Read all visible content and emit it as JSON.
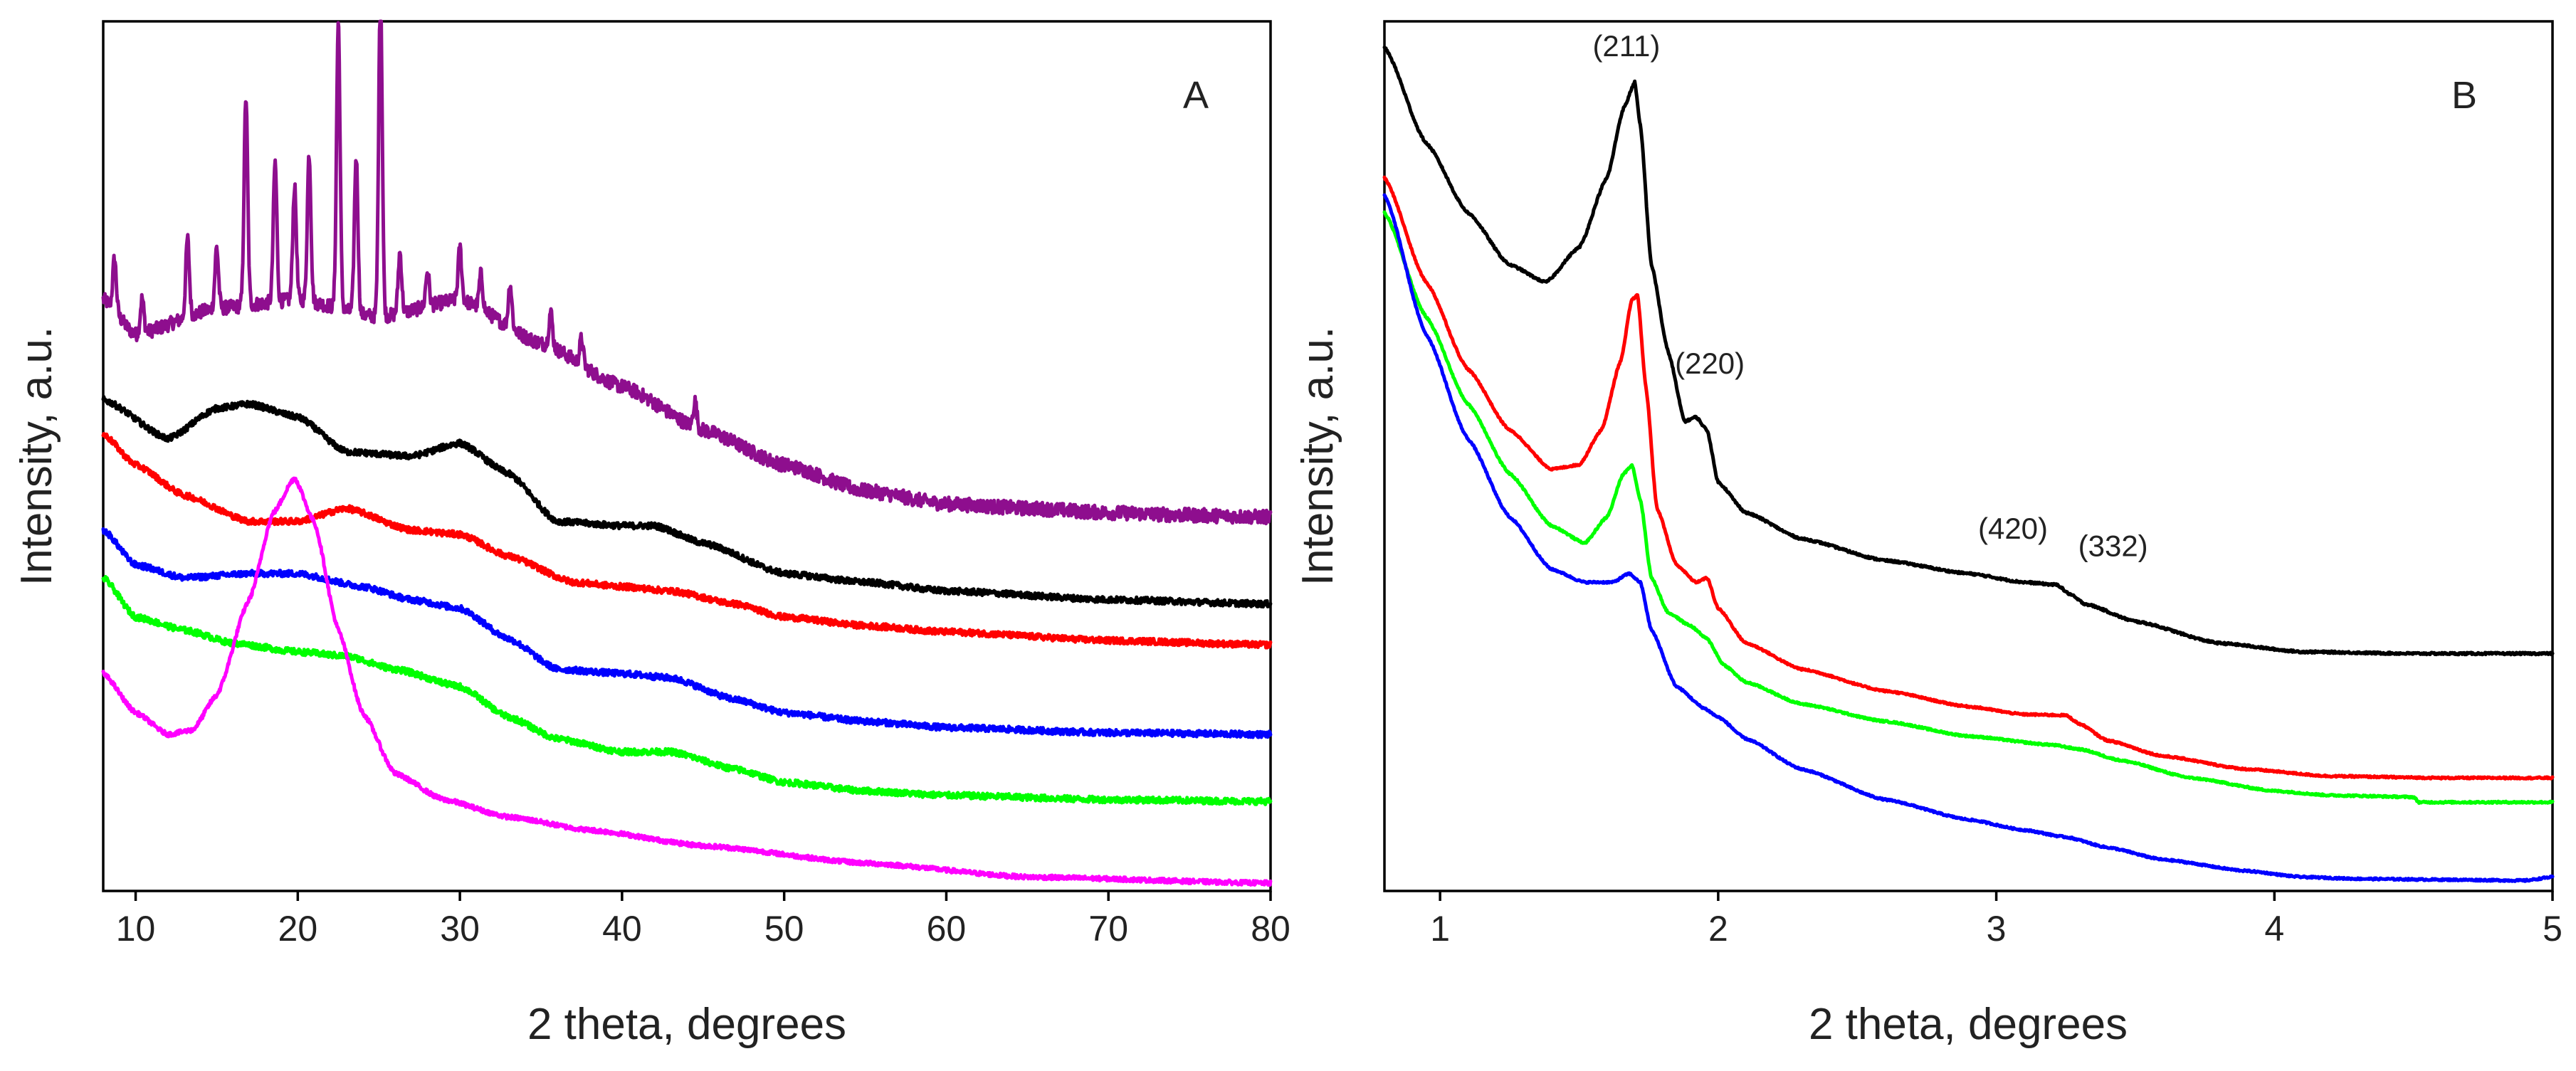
{
  "chart_data": [
    {
      "type": "line",
      "panel": "A",
      "xlabel": "2 theta, degrees",
      "ylabel": "Intensity, a.u.",
      "xlim": [
        8,
        80
      ],
      "ylim": [
        0,
        100
      ],
      "y_tick_labels": false,
      "x_ticks": [
        10,
        20,
        30,
        40,
        50,
        60,
        70,
        80
      ],
      "x_tick_labels": [
        "10",
        "20",
        "30",
        "40",
        "50",
        "60",
        "70",
        "80"
      ],
      "grid": false,
      "series": [
        {
          "name": "purple",
          "color": "#8e0e8e",
          "noise": 0.8,
          "crystalline": true,
          "x": [
            8,
            10,
            15,
            20,
            25,
            30,
            35,
            40,
            45,
            50,
            55,
            60,
            65,
            70,
            75,
            80
          ],
          "values": [
            68,
            64,
            67,
            68,
            66,
            68,
            63,
            58,
            53,
            49,
            46,
            44.5,
            44,
            43.5,
            43.2,
            43
          ],
          "sharp_peaks": [
            [
              8.7,
              6
            ],
            [
              10.4,
              4
            ],
            [
              13.2,
              9
            ],
            [
              15,
              7
            ],
            [
              16.8,
              24
            ],
            [
              18.6,
              16
            ],
            [
              19.8,
              13
            ],
            [
              20.7,
              17
            ],
            [
              22.5,
              33
            ],
            [
              23.6,
              18
            ],
            [
              25.1,
              38
            ],
            [
              26.3,
              7
            ],
            [
              28,
              4
            ],
            [
              30,
              6
            ],
            [
              31.3,
              4
            ],
            [
              33.1,
              5
            ],
            [
              35.6,
              4
            ],
            [
              37.5,
              3
            ],
            [
              44.5,
              3
            ]
          ]
        },
        {
          "name": "black",
          "color": "#000000",
          "noise": 0.35,
          "x": [
            8,
            12,
            15,
            17,
            20,
            23,
            27,
            30,
            33,
            36,
            40,
            42,
            45,
            50,
            55,
            60,
            70,
            80
          ],
          "values": [
            56.5,
            52,
            55.5,
            56,
            54.5,
            50.5,
            50,
            51.5,
            48,
            42.5,
            42,
            42,
            40,
            36.5,
            35.5,
            34.5,
            33.5,
            33
          ]
        },
        {
          "name": "red",
          "color": "#ff0000",
          "noise": 0.35,
          "x": [
            8,
            10,
            13,
            17,
            20,
            23,
            27,
            30,
            33,
            37,
            40,
            43,
            47,
            50,
            55,
            60,
            70,
            80
          ],
          "values": [
            52.5,
            49,
            45.5,
            42.5,
            42.5,
            44,
            41.5,
            41,
            38.5,
            35.5,
            35,
            34.5,
            33,
            31.5,
            30.5,
            29.8,
            28.8,
            28.3
          ]
        },
        {
          "name": "blue",
          "color": "#0000ff",
          "noise": 0.35,
          "x": [
            8,
            10,
            13,
            17,
            20,
            24,
            27,
            30,
            33,
            36,
            40,
            43,
            47,
            50,
            55,
            60,
            70,
            80
          ],
          "values": [
            41.5,
            37.5,
            36,
            36.5,
            36.5,
            35,
            33.5,
            32.5,
            29,
            25.5,
            25,
            24.5,
            22,
            20.5,
            19.5,
            18.8,
            18.2,
            18
          ]
        },
        {
          "name": "green",
          "color": "#00ff00",
          "noise": 0.35,
          "x": [
            8,
            10,
            13,
            16,
            20,
            23,
            26,
            30,
            33,
            36,
            40,
            43,
            47,
            50,
            55,
            60,
            70,
            80
          ],
          "values": [
            36,
            31.5,
            30,
            28.5,
            27.5,
            27,
            25.5,
            23.5,
            20,
            17.5,
            16,
            16,
            14,
            12.5,
            11.5,
            11,
            10.5,
            10.3
          ]
        },
        {
          "name": "magenta",
          "color": "#ff00ff",
          "noise": 0.25,
          "x": [
            8,
            10,
            12,
            13.5,
            15,
            17,
            18.5,
            19.8,
            21,
            22.5,
            24,
            26,
            29,
            33,
            38,
            45,
            55,
            65,
            80
          ],
          "values": [
            25,
            20.5,
            18,
            18.5,
            22.5,
            33.5,
            43.5,
            47.5,
            42.5,
            30,
            20.5,
            13.5,
            10.5,
            8.5,
            7,
            5.2,
            3.2,
            1.6,
            0.9
          ]
        }
      ]
    },
    {
      "type": "line",
      "panel": "B",
      "xlabel": "2 theta, degrees",
      "ylabel": "Intensity, a.u.",
      "xlim": [
        0.8,
        5
      ],
      "ylim": [
        0,
        100
      ],
      "y_tick_labels": false,
      "x_ticks": [
        1,
        2,
        3,
        4,
        5
      ],
      "x_tick_labels": [
        "1",
        "2",
        "3",
        "4",
        "5"
      ],
      "grid": false,
      "annotations": [
        {
          "text": "(211)",
          "x": 1.67,
          "y": 96
        },
        {
          "text": "(220)",
          "x": 1.97,
          "y": 59.5
        },
        {
          "text": "(420)",
          "x": 3.06,
          "y": 40.5
        },
        {
          "text": "(332)",
          "x": 3.42,
          "y": 38.5
        }
      ],
      "series": [
        {
          "name": "black",
          "color": "#000000",
          "noise": 0.12,
          "x": [
            0.8,
            0.95,
            1.1,
            1.25,
            1.38,
            1.5,
            1.6,
            1.66,
            1.7,
            1.72,
            1.76,
            1.82,
            1.88,
            1.92,
            1.96,
            2.0,
            2.1,
            2.3,
            2.6,
            2.9,
            3.1,
            3.22,
            3.26,
            3.32,
            3.5,
            3.8,
            4.1,
            4.5,
            5.0
          ],
          "values": [
            97,
            86,
            78,
            72,
            70,
            74,
            82,
            90,
            93,
            88,
            72,
            62,
            54,
            54.5,
            53,
            47,
            43.5,
            40.5,
            38,
            36.5,
            35.5,
            35.2,
            34.2,
            33,
            31,
            28.5,
            27.5,
            27.3,
            27.3
          ]
        },
        {
          "name": "red",
          "color": "#ff0000",
          "noise": 0.1,
          "x": [
            0.8,
            0.95,
            1.1,
            1.25,
            1.4,
            1.5,
            1.58,
            1.65,
            1.69,
            1.71,
            1.74,
            1.78,
            1.85,
            1.92,
            1.96,
            2.0,
            2.1,
            2.3,
            2.6,
            2.9,
            3.1,
            3.25,
            3.3,
            3.4,
            3.6,
            3.9,
            4.2,
            4.6,
            5.0
          ],
          "values": [
            82,
            70,
            60,
            53,
            48.5,
            49,
            53,
            61,
            68,
            68.5,
            58,
            44,
            37.5,
            35.5,
            36,
            32.5,
            28.5,
            25.5,
            23,
            21.2,
            20.3,
            20.2,
            19.2,
            17.3,
            15.5,
            14,
            13.2,
            13,
            13
          ]
        },
        {
          "name": "green",
          "color": "#00ff00",
          "noise": 0.1,
          "x": [
            0.8,
            0.95,
            1.1,
            1.25,
            1.4,
            1.52,
            1.6,
            1.66,
            1.69,
            1.72,
            1.76,
            1.82,
            1.9,
            1.96,
            2.02,
            2.1,
            2.3,
            2.6,
            2.9,
            3.2,
            3.3,
            3.45,
            3.7,
            4.0,
            4.2,
            4.5,
            4.52,
            5.0
          ],
          "values": [
            78,
            66,
            56,
            48,
            42,
            40,
            43,
            48,
            49,
            45,
            36,
            32,
            30.5,
            29,
            26,
            24,
            21.5,
            19.5,
            17.8,
            16.8,
            16.3,
            15,
            13,
            11.5,
            11,
            10.8,
            10.2,
            10.2
          ]
        },
        {
          "name": "blue",
          "color": "#0000ff",
          "noise": 0.1,
          "x": [
            0.8,
            0.95,
            1.1,
            1.25,
            1.4,
            1.52,
            1.62,
            1.68,
            1.72,
            1.76,
            1.85,
            1.95,
            2.0,
            2.1,
            2.3,
            2.6,
            2.9,
            3.1,
            3.25,
            3.4,
            3.6,
            3.9,
            4.1,
            4.3,
            4.6,
            4.9,
            5.0
          ],
          "values": [
            80,
            64,
            52,
            43,
            37,
            35.5,
            35.5,
            36.5,
            35.5,
            30,
            23.5,
            21,
            20,
            17.5,
            14,
            10.5,
            8.2,
            7,
            6.2,
            5,
            3.6,
            2.3,
            1.6,
            1.4,
            1.3,
            1.2,
            1.6
          ]
        }
      ]
    }
  ]
}
